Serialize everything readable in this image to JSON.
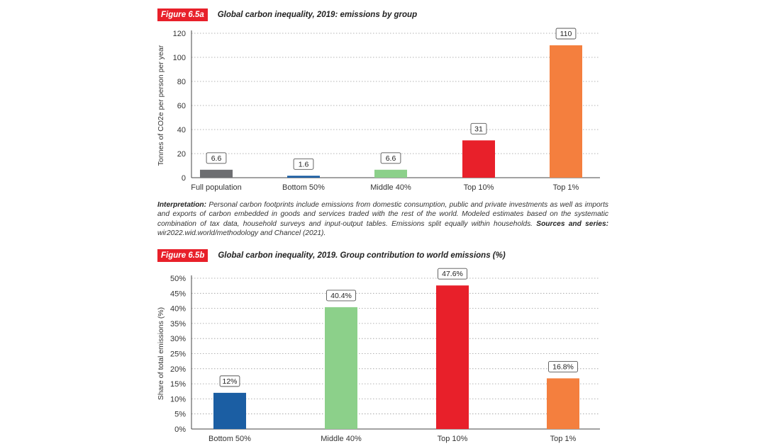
{
  "figure_a": {
    "tag": "Figure 6.5a",
    "title": "Global carbon inequality, 2019: emissions by group"
  },
  "figure_b": {
    "tag": "Figure 6.5b",
    "title": "Global carbon inequality, 2019. Group contribution to world emissions (%)"
  },
  "interpretation": {
    "label": "Interpretation:",
    "text": " Personal carbon footprints include emissions from domestic consumption, public and private investments as well as imports and exports of carbon embedded in goods and services traded with the rest of the world. Modeled estimates based on the systematic combination of tax data, household surveys and input-output tables. Emissions split equally within households. ",
    "sources_label": "Sources and series:",
    "sources_text": " wir2022.wid.world/methodology and Chancel (2021)."
  },
  "chart_data": [
    {
      "type": "bar",
      "title": "Global carbon inequality, 2019: emissions by group",
      "ylabel": "Tonnes of CO2e per person per year",
      "xlabel": "",
      "ylim": [
        0,
        120
      ],
      "yticks": [
        0,
        20,
        40,
        60,
        80,
        100,
        120
      ],
      "ytick_labels": [
        "0",
        "20",
        "40",
        "60",
        "80",
        "100",
        "120"
      ],
      "categories": [
        "Full population",
        "Bottom 50%",
        "Middle 40%",
        "Top 10%",
        "Top 1%"
      ],
      "values": [
        6.6,
        1.6,
        6.6,
        31,
        110
      ],
      "data_labels": [
        "6.6",
        "1.6",
        "6.6",
        "31",
        "110"
      ],
      "colors": [
        "#6d6e71",
        "#1b5ea3",
        "#8cd08a",
        "#e8202a",
        "#f47f3e"
      ],
      "grid": true
    },
    {
      "type": "bar",
      "title": "Global carbon inequality, 2019. Group contribution to world emissions (%)",
      "ylabel": "Share of total emissions (%)",
      "xlabel": "",
      "ylim": [
        0,
        50
      ],
      "yticks": [
        0,
        5,
        10,
        15,
        20,
        25,
        30,
        35,
        40,
        45,
        50
      ],
      "ytick_labels": [
        "0%",
        "5%",
        "10%",
        "15%",
        "20%",
        "25%",
        "30%",
        "35%",
        "40%",
        "45%",
        "50%"
      ],
      "categories": [
        "Bottom 50%",
        "Middle 40%",
        "Top 10%",
        "Top 1%"
      ],
      "values": [
        12,
        40.4,
        47.6,
        16.8
      ],
      "data_labels": [
        "12%",
        "40.4%",
        "47.6%",
        "16.8%"
      ],
      "colors": [
        "#1b5ea3",
        "#8cd08a",
        "#e8202a",
        "#f47f3e"
      ],
      "grid": true
    }
  ]
}
